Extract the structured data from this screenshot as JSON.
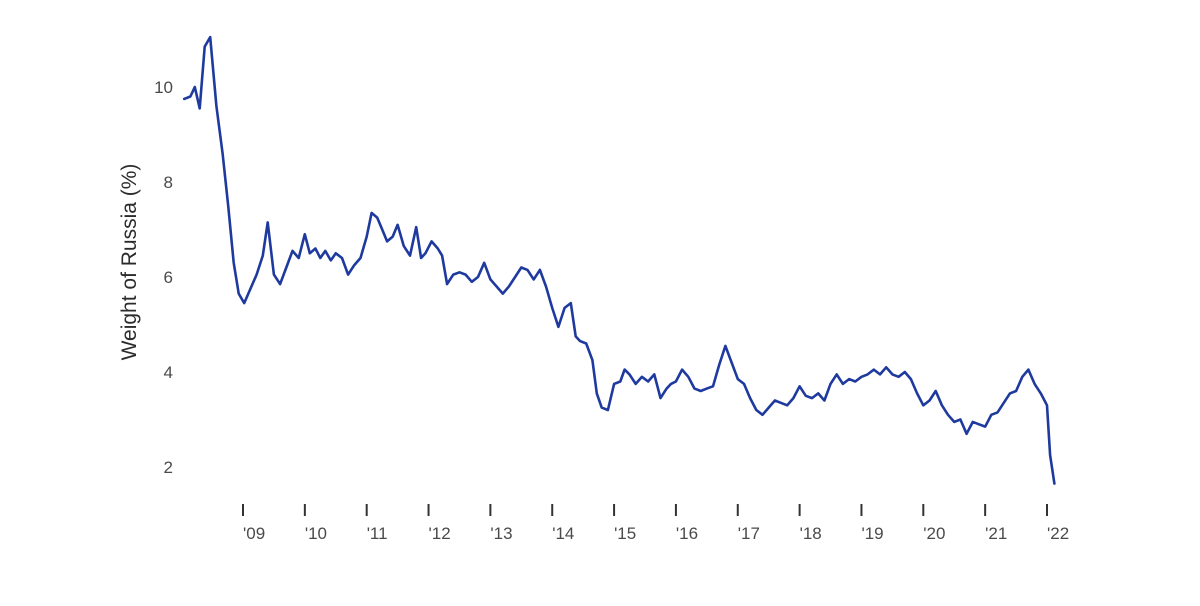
{
  "colors": {
    "line": "#1f3a9e",
    "text": "#4a4a4a",
    "axis": "#333333",
    "background": "#ffffff"
  },
  "chart_data": {
    "type": "line",
    "title": "",
    "xlabel": "",
    "ylabel": "Weight of Russia (%)",
    "ylim": [
      1,
      11.5
    ],
    "xlim": [
      2008.0,
      2022.35
    ],
    "grid": false,
    "legend": "none",
    "y_ticks": [
      {
        "value": 10,
        "label": "10"
      },
      {
        "value": 8,
        "label": "8"
      },
      {
        "value": 6,
        "label": "6"
      },
      {
        "value": 4,
        "label": "4"
      },
      {
        "value": 2,
        "label": "2"
      }
    ],
    "x_ticks": [
      {
        "value": 2009,
        "label": "'09"
      },
      {
        "value": 2010,
        "label": "'10"
      },
      {
        "value": 2011,
        "label": "'11"
      },
      {
        "value": 2012,
        "label": "'12"
      },
      {
        "value": 2013,
        "label": "'13"
      },
      {
        "value": 2014,
        "label": "'14"
      },
      {
        "value": 2015,
        "label": "'15"
      },
      {
        "value": 2016,
        "label": "'16"
      },
      {
        "value": 2017,
        "label": "'17"
      },
      {
        "value": 2018,
        "label": "'18"
      },
      {
        "value": 2019,
        "label": "'19"
      },
      {
        "value": 2020,
        "label": "'20"
      },
      {
        "value": 2021,
        "label": "'21"
      },
      {
        "value": 2022,
        "label": "'22"
      }
    ],
    "series": [
      {
        "x": [
          2008.05,
          2008.15,
          2008.22,
          2008.3,
          2008.38,
          2008.47,
          2008.57,
          2008.67,
          2008.76,
          2008.85,
          2008.93,
          2009.02,
          2009.12,
          2009.22,
          2009.32,
          2009.4,
          2009.5,
          2009.6,
          2009.7,
          2009.8,
          2009.9,
          2010.0,
          2010.08,
          2010.17,
          2010.25,
          2010.33,
          2010.42,
          2010.5,
          2010.6,
          2010.7,
          2010.8,
          2010.9,
          2011.0,
          2011.08,
          2011.17,
          2011.25,
          2011.33,
          2011.42,
          2011.5,
          2011.6,
          2011.7,
          2011.8,
          2011.88,
          2011.95,
          2012.05,
          2012.15,
          2012.22,
          2012.3,
          2012.4,
          2012.5,
          2012.6,
          2012.7,
          2012.8,
          2012.9,
          2013.0,
          2013.1,
          2013.2,
          2013.3,
          2013.4,
          2013.5,
          2013.6,
          2013.7,
          2013.8,
          2013.9,
          2014.0,
          2014.1,
          2014.2,
          2014.3,
          2014.38,
          2014.45,
          2014.55,
          2014.65,
          2014.72,
          2014.8,
          2014.9,
          2015.0,
          2015.1,
          2015.17,
          2015.25,
          2015.35,
          2015.45,
          2015.55,
          2015.65,
          2015.75,
          2015.85,
          2015.92,
          2016.0,
          2016.1,
          2016.2,
          2016.3,
          2016.4,
          2016.5,
          2016.6,
          2016.7,
          2016.8,
          2016.9,
          2017.0,
          2017.1,
          2017.2,
          2017.3,
          2017.4,
          2017.5,
          2017.6,
          2017.7,
          2017.8,
          2017.9,
          2018.0,
          2018.1,
          2018.2,
          2018.3,
          2018.4,
          2018.5,
          2018.6,
          2018.7,
          2018.8,
          2018.9,
          2019.0,
          2019.1,
          2019.2,
          2019.3,
          2019.4,
          2019.5,
          2019.6,
          2019.7,
          2019.8,
          2019.9,
          2020.0,
          2020.1,
          2020.2,
          2020.3,
          2020.4,
          2020.5,
          2020.6,
          2020.7,
          2020.8,
          2020.9,
          2021.0,
          2021.1,
          2021.2,
          2021.3,
          2021.4,
          2021.5,
          2021.6,
          2021.7,
          2021.8,
          2021.9,
          2022.0,
          2022.05,
          2022.12
        ],
        "values": [
          9.75,
          9.8,
          10.0,
          9.55,
          10.85,
          11.05,
          9.6,
          8.6,
          7.5,
          6.3,
          5.65,
          5.45,
          5.75,
          6.05,
          6.45,
          7.15,
          6.05,
          5.85,
          6.2,
          6.55,
          6.4,
          6.9,
          6.5,
          6.6,
          6.4,
          6.55,
          6.35,
          6.5,
          6.4,
          6.05,
          6.25,
          6.4,
          6.85,
          7.35,
          7.25,
          7.0,
          6.75,
          6.85,
          7.1,
          6.65,
          6.45,
          7.05,
          6.4,
          6.5,
          6.75,
          6.6,
          6.45,
          5.85,
          6.05,
          6.1,
          6.05,
          5.9,
          6.0,
          6.3,
          5.95,
          5.8,
          5.65,
          5.8,
          6.0,
          6.2,
          6.15,
          5.95,
          6.15,
          5.8,
          5.35,
          4.95,
          5.35,
          5.45,
          4.75,
          4.65,
          4.6,
          4.25,
          3.55,
          3.25,
          3.2,
          3.75,
          3.8,
          4.05,
          3.95,
          3.75,
          3.9,
          3.8,
          3.95,
          3.45,
          3.65,
          3.75,
          3.8,
          4.05,
          3.9,
          3.65,
          3.6,
          3.65,
          3.7,
          4.15,
          4.55,
          4.2,
          3.85,
          3.75,
          3.45,
          3.2,
          3.1,
          3.25,
          3.4,
          3.35,
          3.3,
          3.45,
          3.7,
          3.5,
          3.45,
          3.55,
          3.4,
          3.75,
          3.95,
          3.75,
          3.85,
          3.8,
          3.9,
          3.95,
          4.05,
          3.95,
          4.1,
          3.95,
          3.9,
          4.0,
          3.85,
          3.55,
          3.3,
          3.4,
          3.6,
          3.3,
          3.1,
          2.95,
          3.0,
          2.7,
          2.95,
          2.9,
          2.85,
          3.1,
          3.15,
          3.35,
          3.55,
          3.6,
          3.9,
          4.05,
          3.75,
          3.55,
          3.3,
          2.25,
          1.65
        ]
      }
    ]
  }
}
